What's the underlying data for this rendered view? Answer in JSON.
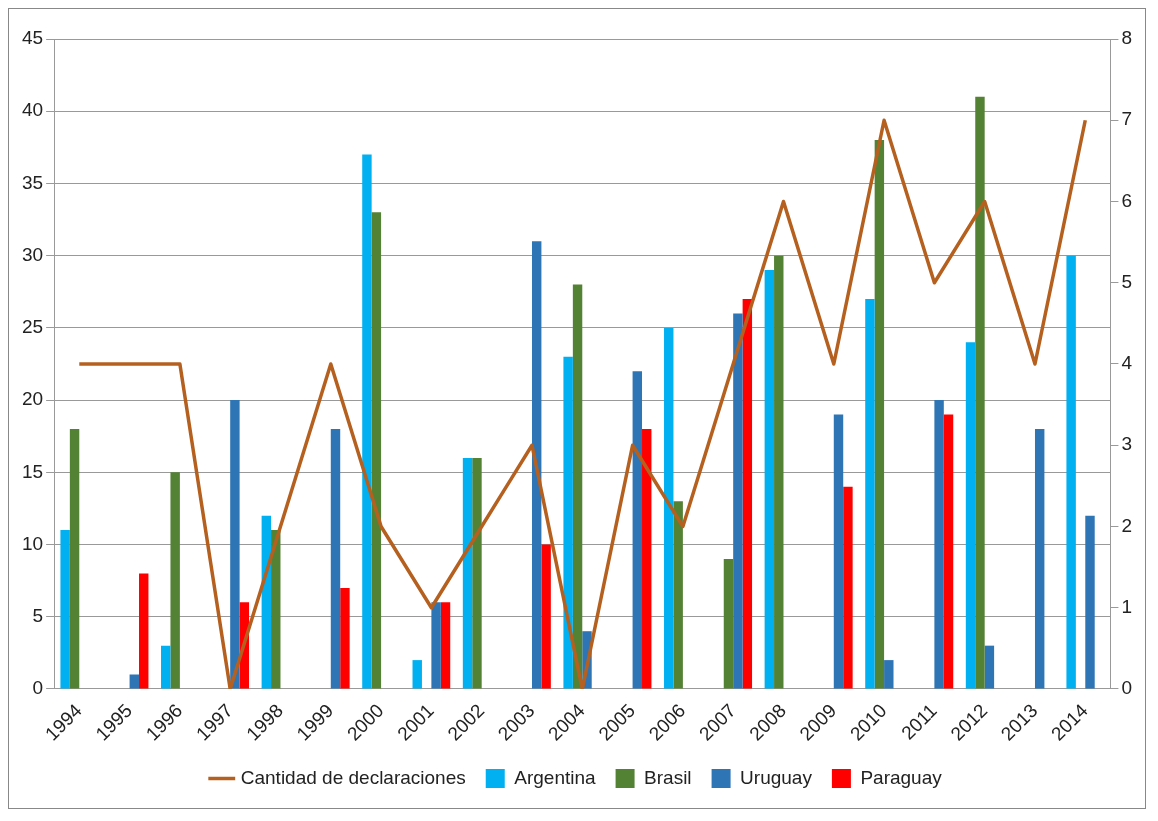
{
  "chart_data": {
    "type": "bar",
    "categories": [
      "1994",
      "1995",
      "1996",
      "1997",
      "1998",
      "1999",
      "2000",
      "2001",
      "2002",
      "2003",
      "2004",
      "2005",
      "2006",
      "2007",
      "2008",
      "2009",
      "2010",
      "2011",
      "2012",
      "2013",
      "2014"
    ],
    "series": [
      {
        "name": "Argentina",
        "color": "#00b0f0",
        "values": [
          11,
          null,
          3,
          null,
          12,
          null,
          37,
          2,
          16,
          null,
          23,
          null,
          25,
          null,
          29,
          null,
          27,
          null,
          24,
          null,
          30
        ]
      },
      {
        "name": "Brasil",
        "color": "#548235",
        "values": [
          18,
          null,
          15,
          null,
          11,
          null,
          33,
          null,
          16,
          null,
          28,
          null,
          13,
          9,
          30,
          null,
          38,
          null,
          41,
          null,
          null
        ]
      },
      {
        "name": "Uruguay",
        "color": "#2e75b6",
        "values": [
          null,
          1,
          null,
          20,
          null,
          18,
          null,
          6,
          null,
          31,
          4,
          22,
          null,
          26,
          null,
          19,
          2,
          20,
          3,
          18,
          12
        ]
      },
      {
        "name": "Paraguay",
        "color": "#ff0000",
        "values": [
          null,
          8,
          null,
          6,
          null,
          7,
          null,
          6,
          null,
          10,
          null,
          18,
          null,
          27,
          null,
          14,
          null,
          19,
          null,
          null,
          null
        ]
      },
      {
        "name": "Cantidad de declaraciones",
        "type": "line",
        "axis": "y2",
        "color": "#b5601f",
        "values": [
          4,
          4,
          4,
          0,
          2,
          4,
          2,
          1,
          2,
          3,
          0,
          3,
          2,
          4,
          6,
          4,
          7,
          5,
          6,
          4,
          7
        ]
      }
    ],
    "ylim": [
      0,
      45
    ],
    "yticks": [
      0,
      5,
      10,
      15,
      20,
      25,
      30,
      35,
      40,
      45
    ],
    "y2lim": [
      0,
      8
    ],
    "y2ticks": [
      0,
      1,
      2,
      3,
      4,
      5,
      6,
      7,
      8
    ],
    "grid": "y",
    "legend": "bottom",
    "line_style": "solid"
  }
}
